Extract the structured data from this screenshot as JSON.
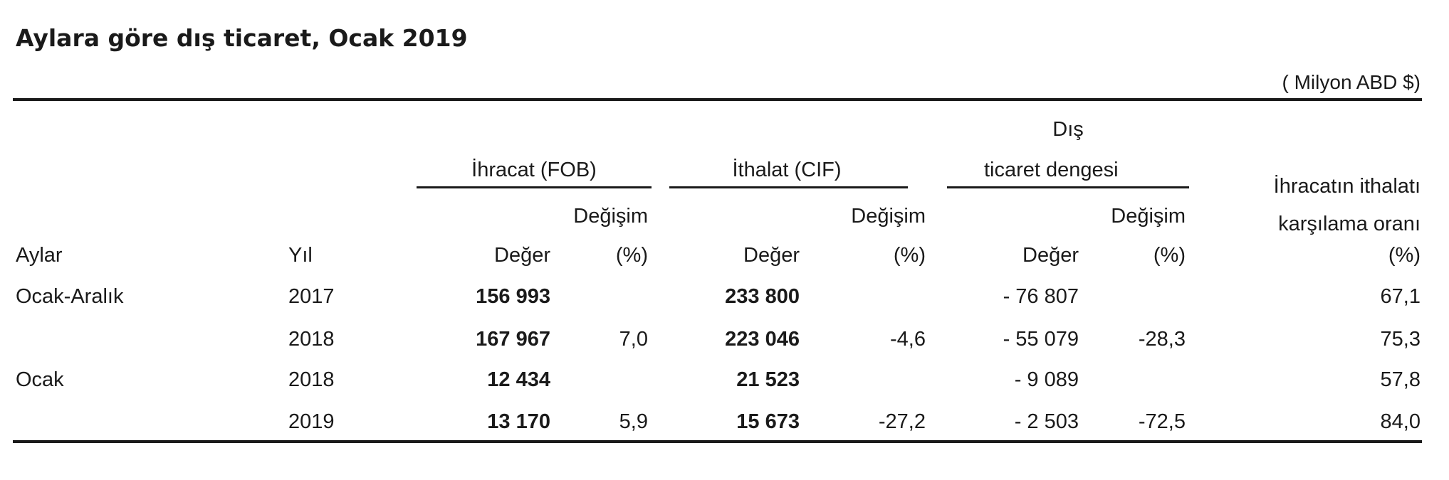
{
  "title": "Aylara göre dış ticaret, Ocak 2019",
  "unit": "( Milyon ABD $)",
  "headers": {
    "aylar": "Aylar",
    "yil": "Yıl",
    "ihracat": "İhracat (FOB)",
    "ithalat": "İthalat (CIF)",
    "denge_line1": "Dış",
    "denge_line2": "ticaret dengesi",
    "degisim": "Değişim",
    "deger": "Değer",
    "pct": "(%)",
    "oran_line1": "İhracatın ithalatı",
    "oran_line2": "karşılama oranı",
    "oran_line3": "(%)"
  },
  "rows": [
    {
      "month": "Ocak-Aralık",
      "year": "2017",
      "exp_val": "156 993",
      "exp_chg": "",
      "imp_val": "233 800",
      "imp_chg": "",
      "bal_val": "- 76 807",
      "bal_chg": "",
      "ratio": "67,1"
    },
    {
      "month": "",
      "year": "2018",
      "exp_val": "167 967",
      "exp_chg": "7,0",
      "imp_val": "223 046",
      "imp_chg": "-4,6",
      "bal_val": "- 55 079",
      "bal_chg": "-28,3",
      "ratio": "75,3"
    },
    {
      "month": "Ocak",
      "year": "2018",
      "exp_val": "12 434",
      "exp_chg": "",
      "imp_val": "21 523",
      "imp_chg": "",
      "bal_val": "- 9 089",
      "bal_chg": "",
      "ratio": "57,8"
    },
    {
      "month": "",
      "year": "2019",
      "exp_val": "13 170",
      "exp_chg": "5,9",
      "imp_val": "15 673",
      "imp_chg": "-27,2",
      "bal_val": "- 2 503",
      "bal_chg": "-72,5",
      "ratio": "84,0"
    }
  ]
}
